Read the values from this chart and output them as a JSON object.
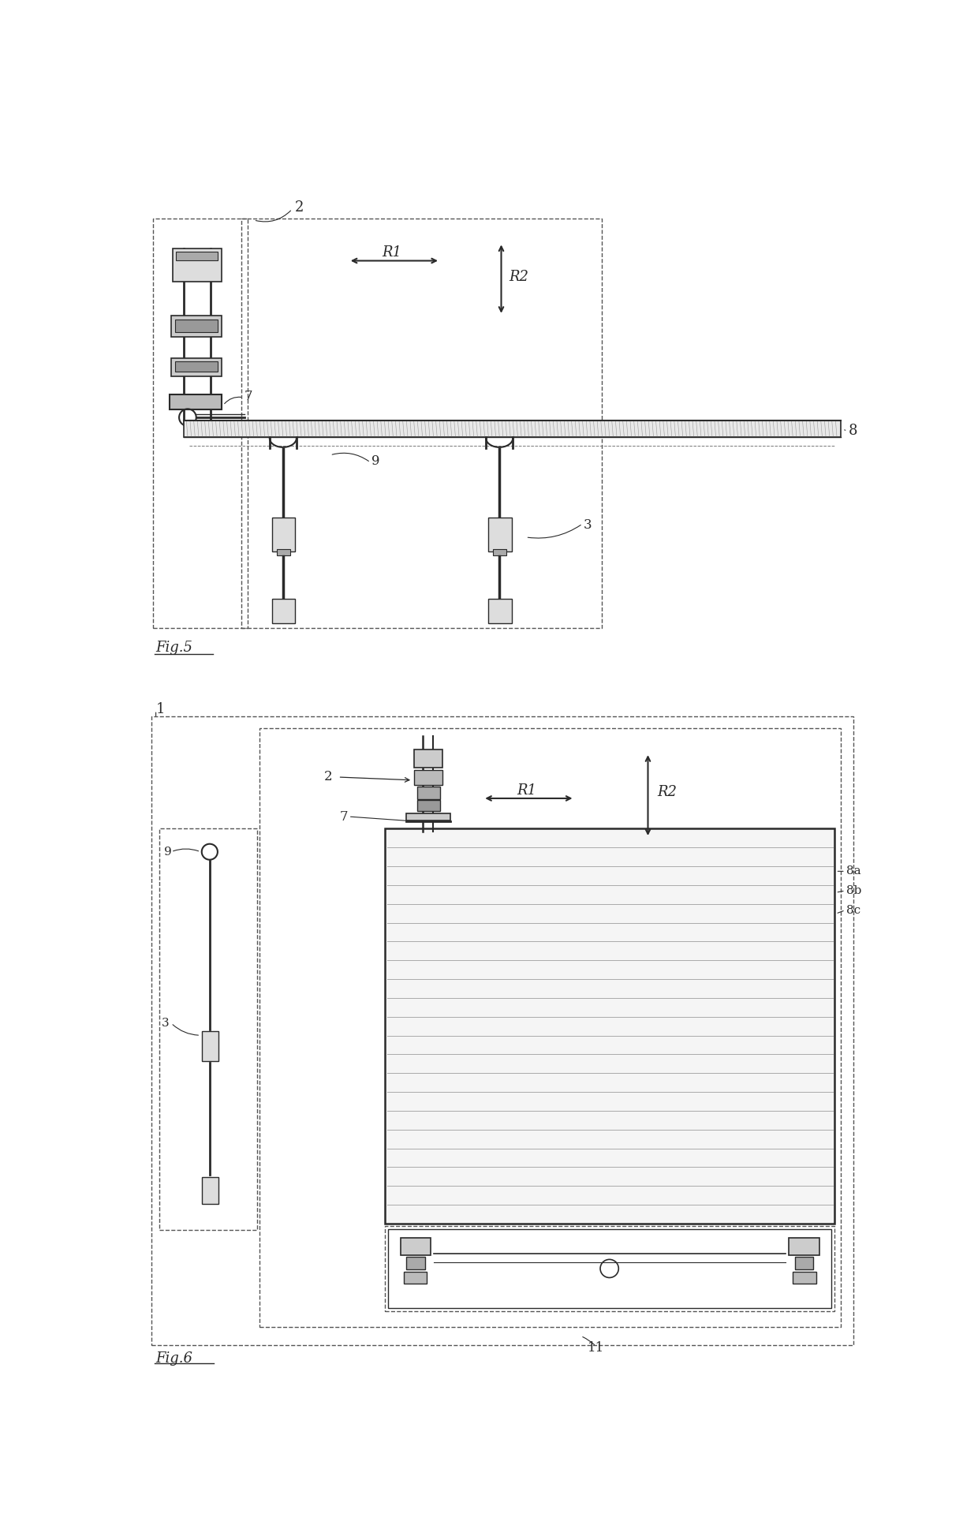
{
  "fig_width": 12.4,
  "fig_height": 19.52,
  "bg_color": "#ffffff",
  "line_color": "#2a2a2a",
  "gray_color": "#888888",
  "light_gray": "#cccccc",
  "fig5_label": "Fig.5",
  "fig6_label": "Fig.6",
  "labels": {
    "fig5_2": "2",
    "fig5_7": "7",
    "fig5_8": "8",
    "fig5_9": "9",
    "fig5_3": "3",
    "fig5_R1": "R1",
    "fig5_R2": "R2",
    "fig6_1": "1",
    "fig6_2": "2",
    "fig6_7": "7",
    "fig6_8a": "8a",
    "fig6_8b": "8b",
    "fig6_8c": "8c",
    "fig6_9": "9",
    "fig6_3": "3",
    "fig6_11": "11",
    "fig6_R1": "R1",
    "fig6_R2": "R2"
  }
}
